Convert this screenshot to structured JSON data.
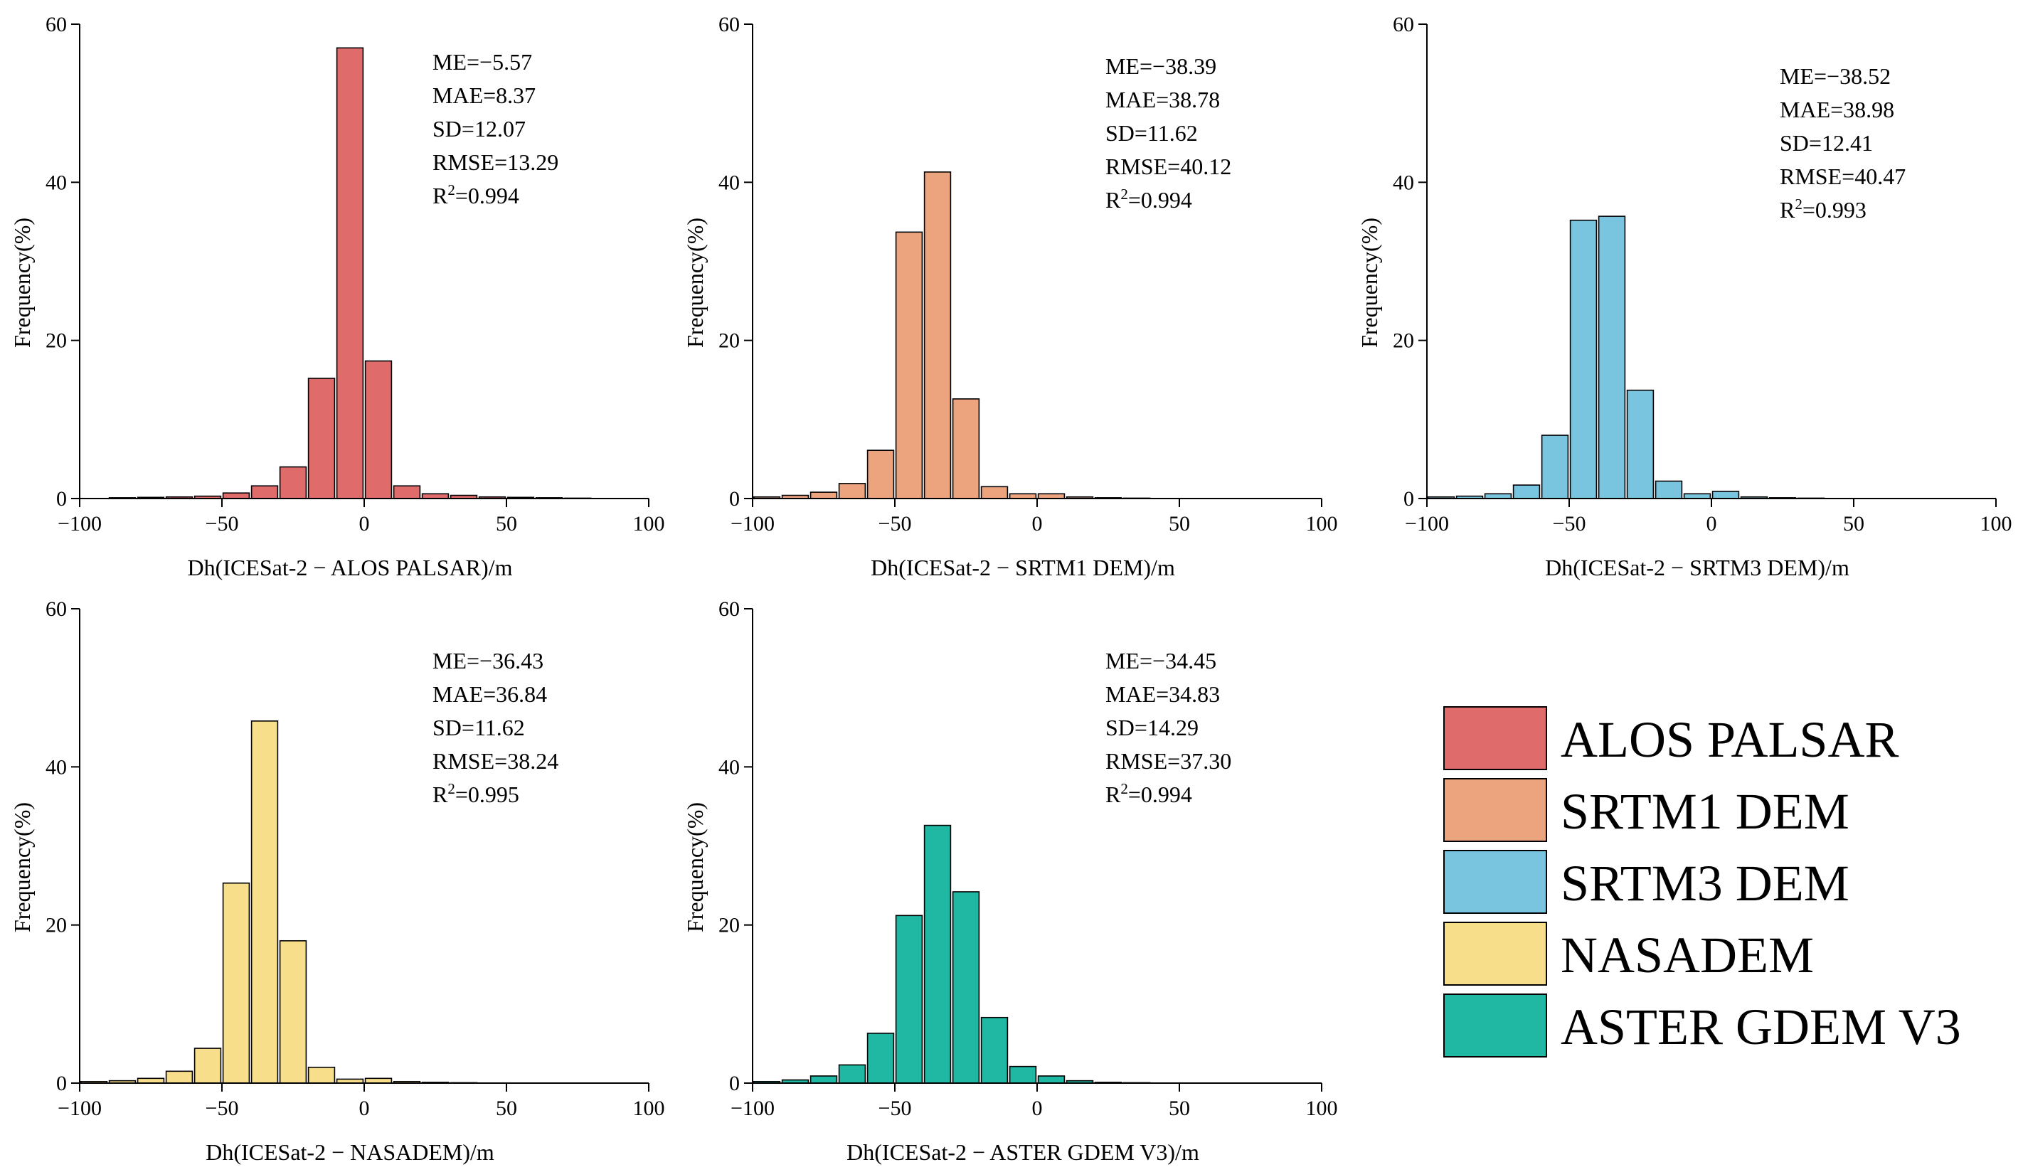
{
  "chart_data": [
    {
      "type": "bar",
      "name": "ALOS PALSAR",
      "color": "#E06B6B",
      "xlabel": "Dh(ICESat-2 − ALOS PALSAR)/m",
      "ylabel": "Frequency(%)",
      "xlim": [
        -100,
        100
      ],
      "ylim": [
        0,
        60
      ],
      "xticks": [
        -100,
        -50,
        0,
        50,
        100
      ],
      "xtick_labels": [
        "−100",
        "−50",
        "0",
        "50",
        "100"
      ],
      "yticks": [
        0,
        20,
        40,
        60
      ],
      "ytick_labels": [
        "0",
        "20",
        "40",
        "60"
      ],
      "bin_centers": [
        -85,
        -75,
        -65,
        -55,
        -45,
        -35,
        -25,
        -15,
        -5,
        5,
        15,
        25,
        35,
        45,
        55,
        65,
        75
      ],
      "values": [
        0.1,
        0.15,
        0.2,
        0.3,
        0.7,
        1.6,
        4.0,
        15.2,
        57.0,
        17.4,
        1.6,
        0.6,
        0.4,
        0.2,
        0.15,
        0.1,
        0.05
      ],
      "stats": [
        "ME=−5.57",
        "MAE=8.37",
        "SD=12.07",
        "RMSE=13.29"
      ],
      "r2": "0.994"
    },
    {
      "type": "bar",
      "name": "SRTM1 DEM",
      "color": "#EBA47E",
      "xlabel": "Dh(ICESat-2 − SRTM1 DEM)/m",
      "ylabel": "Frequency(%)",
      "xlim": [
        -100,
        100
      ],
      "ylim": [
        0,
        60
      ],
      "xticks": [
        -100,
        -50,
        0,
        50,
        100
      ],
      "xtick_labels": [
        "−100",
        "−50",
        "0",
        "50",
        "100"
      ],
      "yticks": [
        0,
        20,
        40,
        60
      ],
      "ytick_labels": [
        "0",
        "20",
        "40",
        "60"
      ],
      "bin_centers": [
        -95,
        -85,
        -75,
        -65,
        -55,
        -45,
        -35,
        -25,
        -15,
        -5,
        5,
        15,
        25,
        35
      ],
      "values": [
        0.2,
        0.4,
        0.8,
        1.9,
        6.1,
        33.7,
        41.3,
        12.6,
        1.5,
        0.6,
        0.6,
        0.2,
        0.1,
        0.05
      ],
      "stats": [
        "ME=−38.39",
        "MAE=38.78",
        "SD=11.62",
        "RMSE=40.12"
      ],
      "r2": "0.994"
    },
    {
      "type": "bar",
      "name": "SRTM3 DEM",
      "color": "#79C5E0",
      "xlabel": "Dh(ICESat-2 − SRTM3 DEM)/m",
      "ylabel": "Frequency(%)",
      "xlim": [
        -100,
        100
      ],
      "ylim": [
        0,
        60
      ],
      "xticks": [
        -100,
        -50,
        0,
        50,
        100
      ],
      "xtick_labels": [
        "−100",
        "−50",
        "0",
        "50",
        "100"
      ],
      "yticks": [
        0,
        20,
        40,
        60
      ],
      "ytick_labels": [
        "0",
        "20",
        "40",
        "60"
      ],
      "bin_centers": [
        -95,
        -85,
        -75,
        -65,
        -55,
        -45,
        -35,
        -25,
        -15,
        -5,
        5,
        15,
        25,
        35
      ],
      "values": [
        0.2,
        0.3,
        0.6,
        1.7,
        8.0,
        35.2,
        35.7,
        13.7,
        2.2,
        0.6,
        0.9,
        0.2,
        0.1,
        0.05
      ],
      "stats": [
        "ME=−38.52",
        "MAE=38.98",
        "SD=12.41",
        "RMSE=40.47"
      ],
      "r2": "0.993"
    },
    {
      "type": "bar",
      "name": "NASADEM",
      "color": "#F6DE8A",
      "xlabel": "Dh(ICESat-2 − NASADEM)/m",
      "ylabel": "Frequency(%)",
      "xlim": [
        -100,
        100
      ],
      "ylim": [
        0,
        60
      ],
      "xticks": [
        -100,
        -50,
        0,
        50,
        100
      ],
      "xtick_labels": [
        "−100",
        "−50",
        "0",
        "50",
        "100"
      ],
      "yticks": [
        0,
        20,
        40,
        60
      ],
      "ytick_labels": [
        "0",
        "20",
        "40",
        "60"
      ],
      "bin_centers": [
        -95,
        -85,
        -75,
        -65,
        -55,
        -45,
        -35,
        -25,
        -15,
        -5,
        5,
        15,
        25,
        35
      ],
      "values": [
        0.2,
        0.3,
        0.6,
        1.5,
        4.4,
        25.3,
        45.8,
        18.0,
        2.0,
        0.5,
        0.6,
        0.2,
        0.1,
        0.05
      ],
      "stats": [
        "ME=−36.43",
        "MAE=36.84",
        "SD=11.62",
        "RMSE=38.24"
      ],
      "r2": "0.995"
    },
    {
      "type": "bar",
      "name": "ASTER GDEM V3",
      "color": "#20B8A3",
      "xlabel": "Dh(ICESat-2 − ASTER GDEM V3)/m",
      "ylabel": "Frequency(%)",
      "xlim": [
        -100,
        100
      ],
      "ylim": [
        0,
        60
      ],
      "xticks": [
        -100,
        -50,
        0,
        50,
        100
      ],
      "xtick_labels": [
        "−100",
        "−50",
        "0",
        "50",
        "100"
      ],
      "yticks": [
        0,
        20,
        40,
        60
      ],
      "ytick_labels": [
        "0",
        "20",
        "40",
        "60"
      ],
      "bin_centers": [
        -95,
        -85,
        -75,
        -65,
        -55,
        -45,
        -35,
        -25,
        -15,
        -5,
        5,
        15,
        25,
        35
      ],
      "values": [
        0.2,
        0.4,
        0.9,
        2.3,
        6.3,
        21.2,
        32.6,
        24.2,
        8.3,
        2.1,
        0.9,
        0.3,
        0.1,
        0.05
      ],
      "stats": [
        "ME=−34.45",
        "MAE=34.83",
        "SD=14.29",
        "RMSE=37.30"
      ],
      "r2": "0.994"
    }
  ],
  "stat_r2_prefix": "R",
  "stat_r2_sup": "2",
  "stat_r2_eq": "=",
  "legend": {
    "items": [
      {
        "label": "ALOS PALSAR",
        "color": "#E06B6B"
      },
      {
        "label": "SRTM1 DEM",
        "color": "#EBA47E"
      },
      {
        "label": "SRTM3 DEM",
        "color": "#79C5E0"
      },
      {
        "label": "NASADEM",
        "color": "#F6DE8A"
      },
      {
        "label": "ASTER GDEM V3",
        "color": "#20B8A3"
      }
    ]
  }
}
